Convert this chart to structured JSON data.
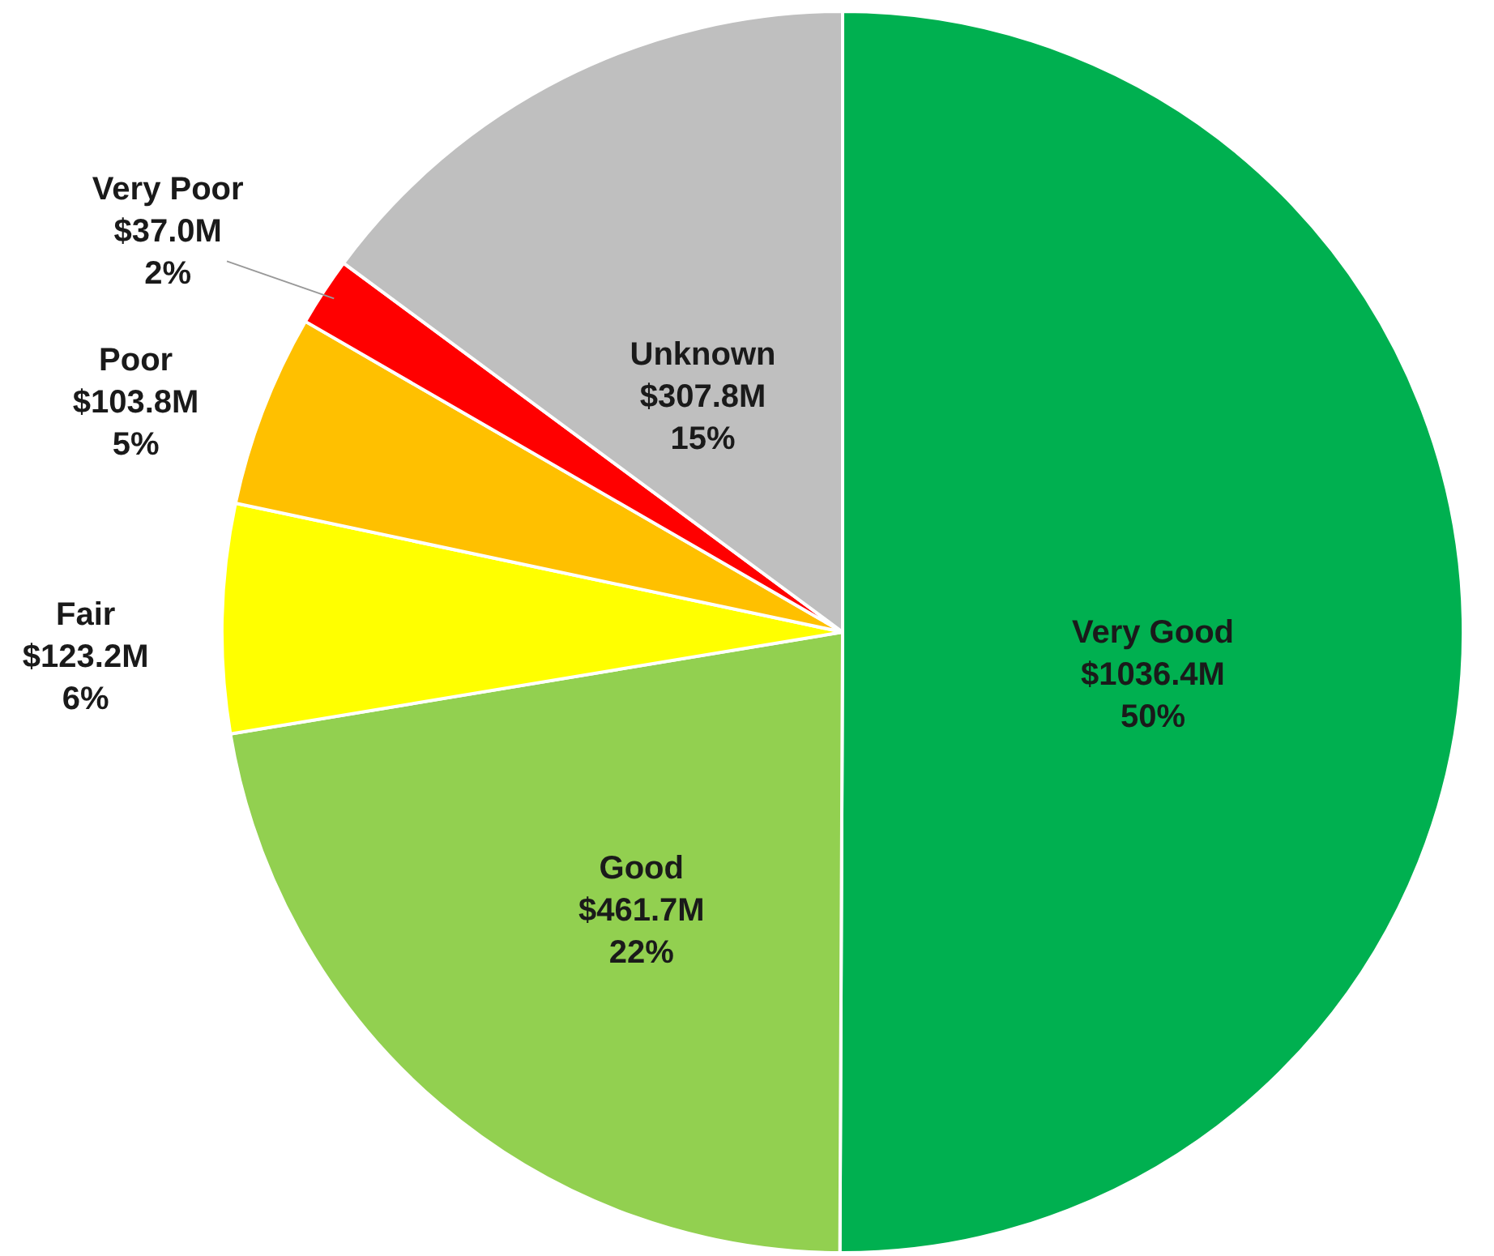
{
  "chart_data": {
    "type": "pie",
    "categories": [
      "Very Good",
      "Good",
      "Fair",
      "Poor",
      "Very Poor",
      "Unknown"
    ],
    "values": [
      1036.4,
      461.7,
      123.2,
      103.8,
      37.0,
      307.8
    ],
    "value_labels": [
      "$1036.4M",
      "$461.7M",
      "$123.2M",
      "$103.8M",
      "$37.0M",
      "$307.8M"
    ],
    "annotations": [
      "50%",
      "22%",
      "6%",
      "5%",
      "2%",
      "15%"
    ],
    "colors": [
      "#00b050",
      "#92d050",
      "#ffff00",
      "#ffc000",
      "#ff0000",
      "#bfbfbf"
    ]
  }
}
